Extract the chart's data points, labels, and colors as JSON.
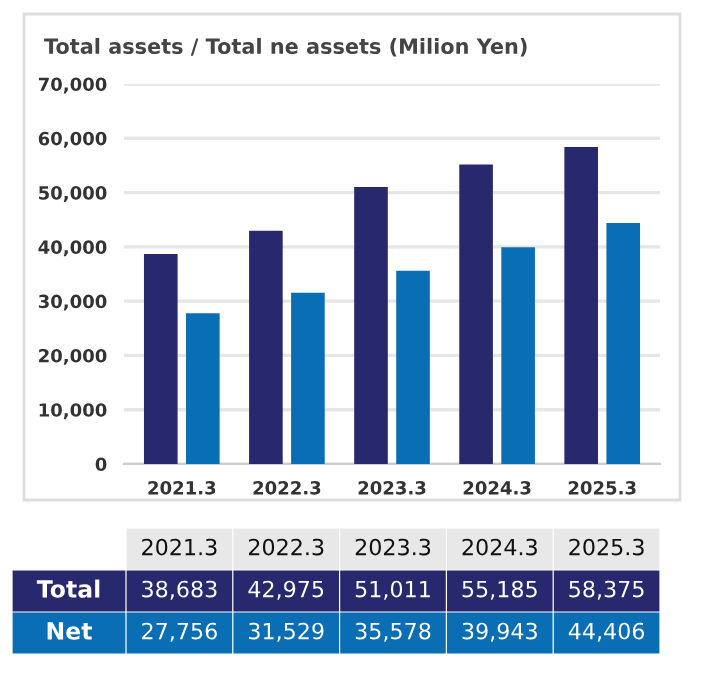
{
  "chart_data": {
    "type": "bar",
    "title": "Total assets / Total ne assets (Milion Yen)",
    "categories": [
      "2021.3",
      "2022.3",
      "2023.3",
      "2024.3",
      "2025.3"
    ],
    "series": [
      {
        "name": "Total",
        "color": "#28286e",
        "values": [
          38683,
          42975,
          51011,
          55185,
          58375
        ],
        "value_labels": [
          "38,683",
          "42,975",
          "51,011",
          "55,185",
          "58,375"
        ]
      },
      {
        "name": "Net",
        "color": "#0a6eb4",
        "values": [
          27756,
          31529,
          35578,
          39943,
          44406
        ],
        "value_labels": [
          "27,756",
          "31,529",
          "35,578",
          "39,943",
          "44,406"
        ]
      }
    ],
    "ylim": [
      0,
      70000
    ],
    "yticks": [
      {
        "value": 0,
        "label": "0"
      },
      {
        "value": 10000,
        "label": "10,000"
      },
      {
        "value": 20000,
        "label": "20,000"
      },
      {
        "value": 30000,
        "label": "30,000"
      },
      {
        "value": 40000,
        "label": "40,000"
      },
      {
        "value": 50000,
        "label": "50,000"
      },
      {
        "value": 60000,
        "label": "60,000"
      },
      {
        "value": 70000,
        "label": "70,000"
      }
    ],
    "grid": "y",
    "legend": "bottom"
  }
}
